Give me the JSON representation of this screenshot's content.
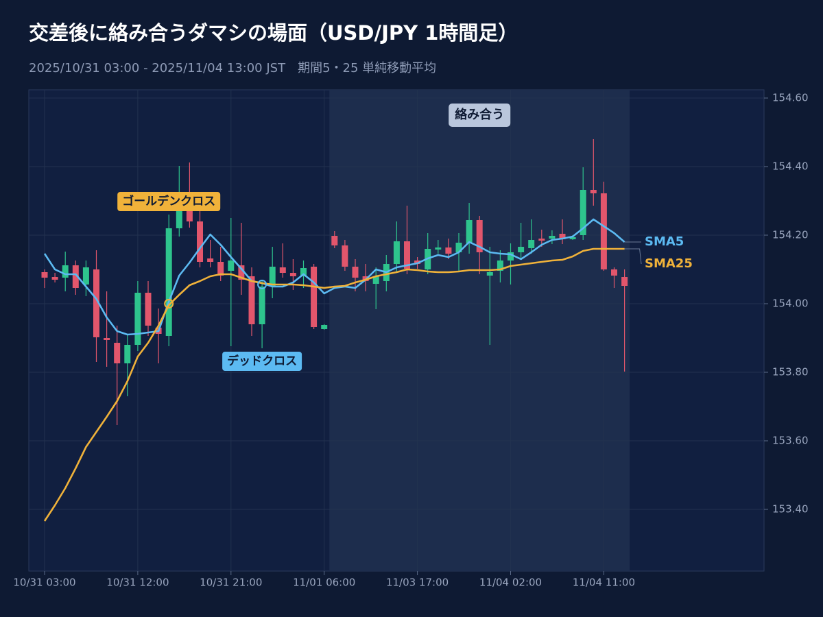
{
  "chart_data": {
    "type": "candlestick",
    "title": "交差後に絡み合うダマシの場面（USD/JPY 1時間足）",
    "subtitle": "2025/10/31 03:00 - 2025/11/04 13:00 JST　期間5・25 単純移動平均",
    "categories": [
      "10/31 03:00",
      null,
      null,
      null,
      null,
      null,
      null,
      null,
      null,
      "10/31 12:00",
      null,
      null,
      null,
      null,
      null,
      null,
      null,
      null,
      "10/31 21:00",
      null,
      null,
      null,
      null,
      null,
      null,
      null,
      null,
      "11/01 06:00",
      null,
      null,
      null,
      null,
      null,
      null,
      null,
      null,
      "11/03 17:00",
      null,
      null,
      null,
      null,
      null,
      null,
      null,
      null,
      "11/04 02:00",
      null,
      null,
      null,
      null,
      null,
      null,
      null,
      null,
      "11/04 11:00",
      null,
      null
    ],
    "open": [
      154.092,
      154.078,
      154.076,
      154.112,
      154.056,
      154.1,
      153.9,
      153.886,
      153.826,
      153.88,
      154.032,
      153.93,
      153.906,
      154.22,
      154.276,
      154.24,
      154.132,
      154.122,
      154.096,
      154.112,
      154.08,
      153.94,
      154.05,
      154.106,
      154.09,
      154.08,
      154.108,
      153.926,
      154.198,
      154.17,
      154.108,
      154.08,
      154.058,
      154.066,
      154.116,
      154.182,
      154.126,
      154.1,
      154.158,
      154.164,
      154.15,
      154.176,
      154.244,
      154.082,
      154.096,
      154.126,
      154.15,
      154.162,
      154.19,
      154.19,
      154.204,
      154.188,
      154.2,
      154.332,
      154.322,
      154.1,
      154.078
    ],
    "high": [
      154.1,
      154.09,
      154.152,
      154.126,
      154.126,
      154.156,
      154.036,
      153.936,
      153.91,
      154.066,
      154.066,
      153.986,
      154.26,
      154.402,
      154.412,
      154.276,
      154.186,
      154.166,
      154.25,
      154.236,
      154.106,
      154.066,
      154.166,
      154.176,
      154.13,
      154.126,
      154.116,
      153.94,
      154.212,
      154.186,
      154.13,
      154.116,
      154.106,
      154.142,
      154.24,
      154.286,
      154.136,
      154.206,
      154.186,
      154.19,
      154.206,
      154.294,
      154.256,
      154.166,
      154.156,
      154.176,
      154.236,
      154.246,
      154.216,
      154.214,
      154.246,
      154.2,
      154.398,
      154.48,
      154.356,
      154.106,
      154.1
    ],
    "low": [
      154.046,
      154.062,
      154.036,
      154.026,
      154.022,
      153.83,
      153.816,
      153.646,
      153.73,
      153.862,
      153.906,
      153.826,
      153.876,
      154.196,
      154.222,
      154.106,
      154.106,
      154.066,
      153.876,
      154.026,
      153.906,
      153.87,
      154.016,
      154.076,
      154.04,
      154.046,
      153.926,
      153.924,
      154.162,
      154.096,
      154.036,
      154.036,
      153.984,
      154.036,
      154.09,
      154.086,
      154.102,
      154.086,
      154.146,
      154.13,
      154.096,
      154.146,
      154.086,
      153.88,
      154.062,
      154.056,
      154.13,
      154.146,
      154.166,
      154.174,
      154.174,
      154.186,
      154.186,
      154.286,
      154.096,
      154.046,
      153.802
    ],
    "close": [
      154.076,
      154.07,
      154.112,
      154.046,
      154.106,
      153.902,
      153.894,
      153.826,
      153.88,
      154.032,
      153.936,
      153.912,
      154.22,
      154.27,
      154.24,
      154.122,
      154.122,
      154.082,
      154.126,
      154.07,
      153.94,
      154.05,
      154.108,
      154.09,
      154.08,
      154.104,
      153.932,
      153.938,
      154.17,
      154.108,
      154.076,
      154.066,
      154.08,
      154.116,
      154.182,
      154.102,
      154.116,
      154.16,
      154.164,
      154.146,
      154.178,
      154.244,
      154.15,
      154.092,
      154.126,
      154.15,
      154.166,
      154.186,
      154.184,
      154.198,
      154.188,
      154.194,
      154.332,
      154.322,
      154.1,
      154.082,
      154.052
    ],
    "up_color": "#2ec48d",
    "down_color": "#e2566c",
    "series": [
      {
        "name": "SMA5",
        "color": "#5cbaf2",
        "values": [
          154.146,
          154.1,
          154.086,
          154.086,
          154.05,
          154.014,
          153.96,
          153.92,
          153.91,
          153.912,
          153.916,
          153.92,
          154.006,
          154.082,
          154.12,
          154.162,
          154.202,
          154.172,
          154.136,
          154.102,
          154.066,
          154.06,
          154.05,
          154.05,
          154.062,
          154.086,
          154.062,
          154.03,
          154.046,
          154.05,
          154.046,
          154.07,
          154.1,
          154.092,
          154.106,
          154.112,
          154.118,
          154.132,
          154.142,
          154.136,
          154.15,
          154.18,
          154.166,
          154.15,
          154.146,
          154.144,
          154.13,
          154.15,
          154.172,
          154.186,
          154.19,
          154.196,
          154.22,
          154.246,
          154.226,
          154.206,
          154.18
        ]
      },
      {
        "name": "SMA25",
        "color": "#f0b23a",
        "values": [
          153.366,
          153.412,
          153.462,
          153.52,
          153.582,
          153.626,
          153.67,
          153.716,
          153.774,
          153.846,
          153.886,
          153.936,
          153.996,
          154.026,
          154.054,
          154.066,
          154.08,
          154.086,
          154.086,
          154.076,
          154.066,
          154.06,
          154.056,
          154.056,
          154.056,
          154.054,
          154.05,
          154.046,
          154.05,
          154.052,
          154.062,
          154.07,
          154.08,
          154.086,
          154.092,
          154.1,
          154.098,
          154.094,
          154.092,
          154.092,
          154.094,
          154.098,
          154.098,
          154.098,
          154.1,
          154.11,
          154.114,
          154.118,
          154.122,
          154.126,
          154.128,
          154.138,
          154.154,
          154.16,
          154.16,
          154.16,
          154.16
        ]
      }
    ],
    "ylim": [
      153.22,
      154.624
    ],
    "yticks": [
      {
        "value": 153.4,
        "label": "153.40"
      },
      {
        "value": 153.6,
        "label": "153.60"
      },
      {
        "value": 153.8,
        "label": "153.80"
      },
      {
        "value": 154.0,
        "label": "154.00"
      },
      {
        "value": 154.2,
        "label": "154.20"
      },
      {
        "value": 154.4,
        "label": "154.40"
      },
      {
        "value": 154.6,
        "label": "154.60"
      }
    ],
    "grid": true,
    "highlight": {
      "text": "絡み合う",
      "start": 27.5,
      "end": 56.5
    },
    "annotations": [
      {
        "text": "ゴールデンクロス",
        "x": 12,
        "y": 154.0,
        "color": "#f0b23a"
      },
      {
        "text": "デッドクロス",
        "x": 21,
        "y": 154.056,
        "color": "#5cbaf2"
      }
    ]
  }
}
